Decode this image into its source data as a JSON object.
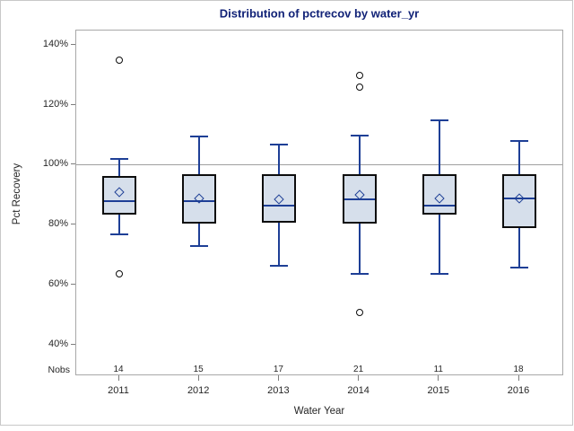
{
  "colors": {
    "title": "#112277",
    "text": "#262626",
    "frame": "#c8c8c8",
    "plot_border": "#a8a8a8",
    "reference_line": "#9f9f9f",
    "box_fill": "#d6dfeb",
    "box_border": "#0d0d0d",
    "line": "#1e3f96"
  },
  "chart_data": {
    "type": "box",
    "title": "Distribution of pctrecov by water_yr",
    "xlabel": "Water Year",
    "ylabel": "Pct Recovery",
    "nobs_label": "Nobs",
    "categories": [
      "2011",
      "2012",
      "2013",
      "2014",
      "2015",
      "2016"
    ],
    "nobs": [
      14,
      15,
      17,
      21,
      11,
      18
    ],
    "y_axis": {
      "ticks": [
        140,
        120,
        100,
        80,
        60,
        40
      ],
      "unit": "%",
      "plot_top_value": 144.8,
      "plot_bottom_value": 29.8,
      "grid": false
    },
    "reference_line": 100,
    "legend": "none",
    "series": [
      {
        "category": "2011",
        "n": 14,
        "whisker_low": 77,
        "q1": 83.5,
        "median": 88,
        "mean": 91,
        "q3": 96.5,
        "whisker_high": 102,
        "outliers": [
          135,
          64
        ]
      },
      {
        "category": "2012",
        "n": 15,
        "whisker_low": 73,
        "q1": 80.5,
        "median": 88,
        "mean": 89,
        "q3": 97,
        "whisker_high": 109.5,
        "outliers": []
      },
      {
        "category": "2013",
        "n": 17,
        "whisker_low": 66.5,
        "q1": 81,
        "median": 86.5,
        "mean": 88.5,
        "q3": 97,
        "whisker_high": 107,
        "outliers": []
      },
      {
        "category": "2014",
        "n": 21,
        "whisker_low": 64,
        "q1": 80.5,
        "median": 88.5,
        "mean": 90,
        "q3": 97,
        "whisker_high": 110,
        "outliers": [
          130,
          126,
          51
        ]
      },
      {
        "category": "2015",
        "n": 11,
        "whisker_low": 64,
        "q1": 83.5,
        "median": 86.5,
        "mean": 89,
        "q3": 97,
        "whisker_high": 115,
        "outliers": []
      },
      {
        "category": "2016",
        "n": 18,
        "whisker_low": 66,
        "q1": 79,
        "median": 89,
        "mean": 89,
        "q3": 97,
        "whisker_high": 108,
        "outliers": []
      }
    ]
  }
}
